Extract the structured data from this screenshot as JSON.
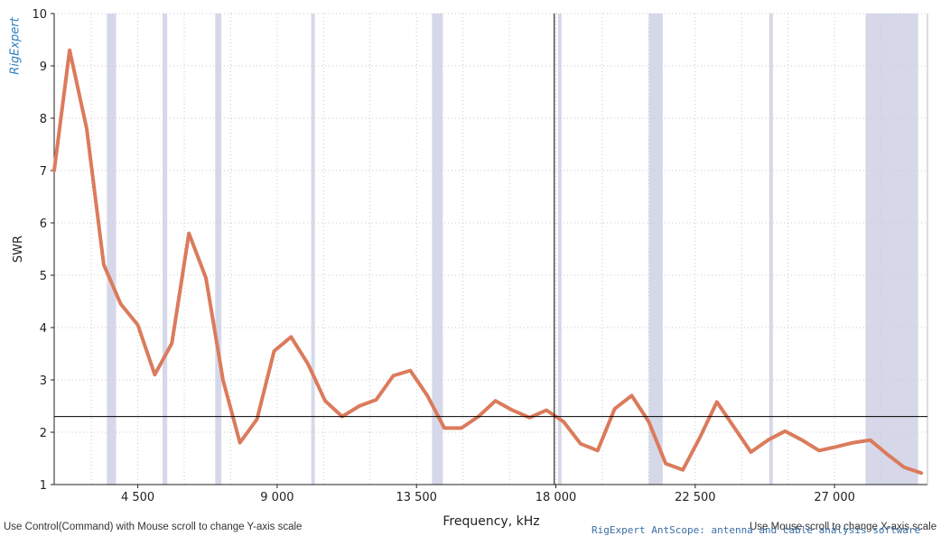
{
  "logo_text": "RigExpert",
  "hints": {
    "left": "Use Control(Command) with Mouse scroll to change Y-axis scale",
    "right": "Use Mouse scroll to change X-axis scale"
  },
  "brand": "RigExpert AntScope: antenna and cable analysis software",
  "colors": {
    "curve": "#db7b5c",
    "band": "#d6d8ea",
    "grid": "#c9c9c9",
    "cursor": "#000000"
  },
  "chart_data": {
    "type": "line",
    "xlabel": "Frequency, kHz",
    "ylabel": "SWR",
    "xlim": [
      1800,
      30000
    ],
    "ylim": [
      1,
      10
    ],
    "x_ticks": [
      4500,
      9000,
      13500,
      18000,
      22500,
      27000
    ],
    "x_tick_labels": [
      "4 500",
      "9 000",
      "13 500",
      "18 000",
      "22 500",
      "27 000"
    ],
    "y_ticks": [
      1,
      2,
      3,
      4,
      5,
      6,
      7,
      8,
      9,
      10
    ],
    "y_tick_labels": [
      "1",
      "2",
      "3",
      "4",
      "5",
      "6",
      "7",
      "8",
      "9",
      "10"
    ],
    "grid": true,
    "cursor": {
      "x": 17950,
      "y": 2.3
    },
    "amateur_bands": [
      [
        3500,
        3800
      ],
      [
        5300,
        5450
      ],
      [
        7000,
        7200
      ],
      [
        10100,
        10150
      ],
      [
        14000,
        14350
      ],
      [
        18068,
        18168
      ],
      [
        21000,
        21450
      ],
      [
        24890,
        24990
      ],
      [
        28000,
        29700
      ]
    ],
    "series": [
      {
        "x": [
          1800,
          2300,
          2850,
          3400,
          3950,
          4500,
          5050,
          5600,
          6150,
          6700,
          7250,
          7800,
          8350,
          8900,
          9450,
          10000,
          10550,
          11100,
          11650,
          12200,
          12750,
          13300,
          13850,
          14400,
          14950,
          15500,
          16050,
          16600,
          17150,
          17700,
          18250,
          18800,
          19350,
          19900,
          20450,
          21000,
          21550,
          22100,
          22650,
          23200,
          23750,
          24300,
          24850,
          25400,
          25950,
          26500,
          27050,
          27600,
          28150,
          28700,
          29250,
          29800
        ],
        "y": [
          7.0,
          9.3,
          7.8,
          5.2,
          4.45,
          4.05,
          3.1,
          3.7,
          5.8,
          4.95,
          3.0,
          1.8,
          2.25,
          3.55,
          3.82,
          3.3,
          2.6,
          2.3,
          2.5,
          2.62,
          3.08,
          3.18,
          2.7,
          2.08,
          2.08,
          2.3,
          2.6,
          2.42,
          2.28,
          2.42,
          2.2,
          1.78,
          1.65,
          2.45,
          2.7,
          2.2,
          1.4,
          1.28,
          1.9,
          2.58,
          2.1,
          1.62,
          1.85,
          2.02,
          1.85,
          1.65,
          1.72,
          1.8,
          1.85,
          1.58,
          1.33,
          1.22
        ]
      }
    ]
  }
}
